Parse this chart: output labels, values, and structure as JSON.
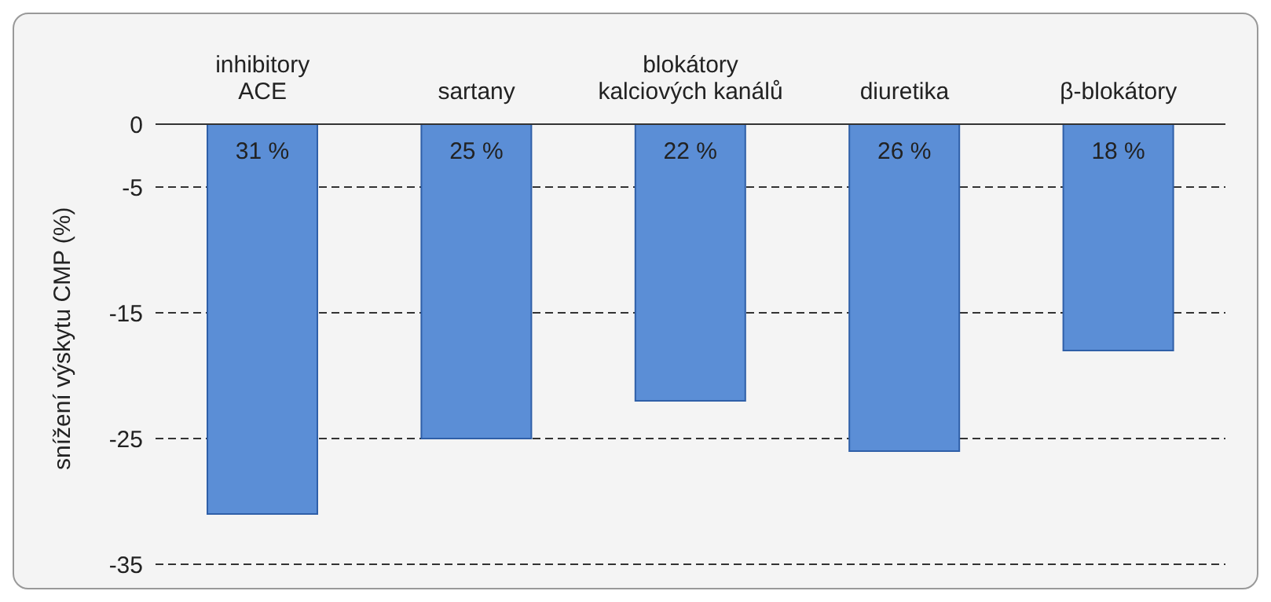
{
  "chart_data": {
    "type": "bar",
    "ylabel": "snížení výskytu CMP (%)",
    "categories": [
      "inhibitory\nACE",
      "sartany",
      "blokátory\nkalciových kanálů",
      "diuretika",
      "β-blokátory"
    ],
    "values": [
      -31,
      -25,
      -22,
      -26,
      -18
    ],
    "annotations": [
      "31 %",
      "25 %",
      "22 %",
      "26 %",
      "18 %"
    ],
    "color": "#5b8ed6",
    "ylim": [
      -35,
      0
    ],
    "yticks": [
      0,
      -5,
      -15,
      -25,
      -35
    ],
    "grid": "y"
  }
}
